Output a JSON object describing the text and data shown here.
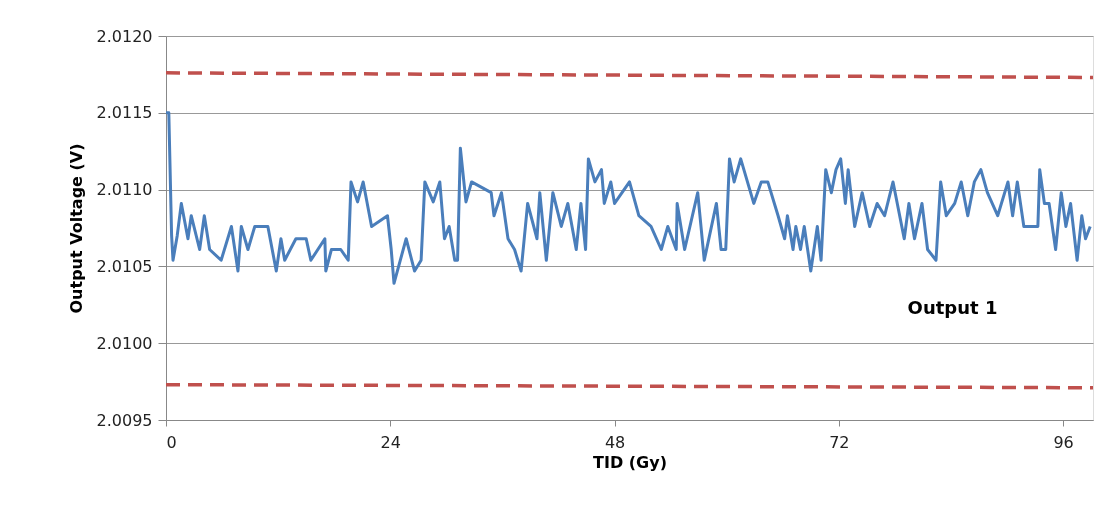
{
  "chart_data": {
    "type": "line",
    "xlabel": "TID (Gy)",
    "ylabel": "Output Voltage (V)",
    "annotations": [
      "Output  1"
    ],
    "xlim": [
      0,
      99.2
    ],
    "xticks": [
      0,
      24,
      48,
      72,
      96
    ],
    "ylim": [
      2.0095,
      2.012
    ],
    "yticks": [
      {
        "value": 2.0095,
        "label": "2.0095"
      },
      {
        "value": 2.01,
        "label": "2.0100"
      },
      {
        "value": 2.0105,
        "label": "2.0105"
      },
      {
        "value": 2.011,
        "label": "2.0110"
      },
      {
        "value": 2.0115,
        "label": "2.0115"
      },
      {
        "value": 2.012,
        "label": "2.0120"
      }
    ],
    "grid": "y",
    "marker": "none",
    "series": [
      {
        "color": "#4a7ebb",
        "line_style": "solid",
        "x": [
          0,
          0.3,
          0.6,
          0.75,
          1.2,
          1.64,
          2.35,
          2.7,
          3.6,
          4.1,
          4.67,
          5.9,
          7.0,
          7.7,
          8.06,
          8.77,
          9.5,
          10.9,
          11.8,
          12.3,
          12.7,
          13.9,
          15.0,
          15.5,
          17.0,
          17.1,
          17.7,
          18.7,
          19.5,
          19.8,
          20.5,
          21.1,
          22.0,
          23.7,
          24.1,
          24.4,
          25.7,
          26.6,
          27.3,
          27.7,
          28.6,
          29.3,
          29.8,
          30.3,
          30.9,
          31.2,
          31.5,
          32.1,
          32.7,
          34.8,
          35.1,
          35.9,
          36.6,
          37.3,
          38.0,
          38.7,
          39.7,
          40.0,
          40.7,
          41.4,
          42.3,
          43.0,
          43.9,
          44.4,
          44.9,
          45.2,
          45.9,
          46.6,
          46.9,
          47.6,
          48.0,
          49.6,
          50.6,
          51.9,
          53.0,
          53.7,
          54.6,
          54.7,
          55.5,
          56.9,
          57.6,
          58.9,
          59.4,
          59.9,
          60.3,
          60.8,
          61.5,
          62.9,
          63.7,
          64.4,
          65.5,
          66.2,
          66.5,
          67.1,
          67.4,
          67.9,
          68.3,
          69.0,
          69.7,
          70.1,
          70.6,
          71.2,
          71.7,
          72.2,
          72.7,
          73.0,
          73.7,
          74.5,
          75.3,
          76.1,
          76.9,
          77.8,
          79.0,
          79.5,
          80.1,
          80.9,
          81.5,
          82.4,
          82.9,
          83.5,
          84.4,
          85.1,
          85.8,
          86.5,
          87.2,
          87.9,
          89.0,
          90.1,
          90.6,
          91.1,
          91.8,
          93.3,
          93.5,
          94.0,
          94.5,
          95.2,
          95.8,
          96.3,
          96.8,
          97.5,
          98.0,
          98.4,
          98.9
        ],
        "values": [
          2.0115,
          2.0115,
          2.0107,
          2.01054,
          2.0107,
          2.01091,
          2.01068,
          2.01083,
          2.01061,
          2.01083,
          2.01061,
          2.01054,
          2.01076,
          2.01047,
          2.01076,
          2.01061,
          2.01076,
          2.01076,
          2.01047,
          2.01068,
          2.01054,
          2.01068,
          2.01068,
          2.01054,
          2.01068,
          2.01047,
          2.01061,
          2.01061,
          2.01054,
          2.01105,
          2.01092,
          2.01105,
          2.01076,
          2.01083,
          2.01061,
          2.01039,
          2.01068,
          2.01047,
          2.01054,
          2.01105,
          2.01092,
          2.01105,
          2.01068,
          2.01076,
          2.01054,
          2.01054,
          2.01127,
          2.01092,
          2.01105,
          2.01098,
          2.01083,
          2.01098,
          2.01068,
          2.01061,
          2.01047,
          2.01091,
          2.01068,
          2.01098,
          2.01054,
          2.01098,
          2.01076,
          2.01091,
          2.01061,
          2.01091,
          2.01061,
          2.0112,
          2.01105,
          2.01113,
          2.01091,
          2.01105,
          2.01091,
          2.01105,
          2.01083,
          2.01076,
          2.01061,
          2.01076,
          2.01061,
          2.01091,
          2.01061,
          2.01098,
          2.01054,
          2.01091,
          2.01061,
          2.01061,
          2.0112,
          2.01105,
          2.0112,
          2.01091,
          2.01105,
          2.01105,
          2.01083,
          2.01068,
          2.01083,
          2.01061,
          2.01076,
          2.01061,
          2.01076,
          2.01047,
          2.01076,
          2.01054,
          2.01113,
          2.01098,
          2.01113,
          2.0112,
          2.01091,
          2.01113,
          2.01076,
          2.01098,
          2.01076,
          2.01091,
          2.01083,
          2.01105,
          2.01068,
          2.01091,
          2.01068,
          2.01091,
          2.01061,
          2.01054,
          2.01105,
          2.01083,
          2.01091,
          2.01105,
          2.01083,
          2.01105,
          2.01113,
          2.01098,
          2.01083,
          2.01105,
          2.01083,
          2.01105,
          2.01076,
          2.01076,
          2.01113,
          2.01091,
          2.01091,
          2.01061,
          2.01098,
          2.01076,
          2.01091,
          2.01054,
          2.01083,
          2.01068,
          2.01076
        ]
      },
      {
        "color": "#c0504d",
        "line_style": "dashed",
        "x": [
          0,
          99.2
        ],
        "values": [
          2.01176,
          2.01173
        ]
      },
      {
        "color": "#c0504d",
        "line_style": "dashed",
        "x": [
          0,
          99.2
        ],
        "values": [
          2.00973,
          2.00971
        ]
      }
    ]
  }
}
